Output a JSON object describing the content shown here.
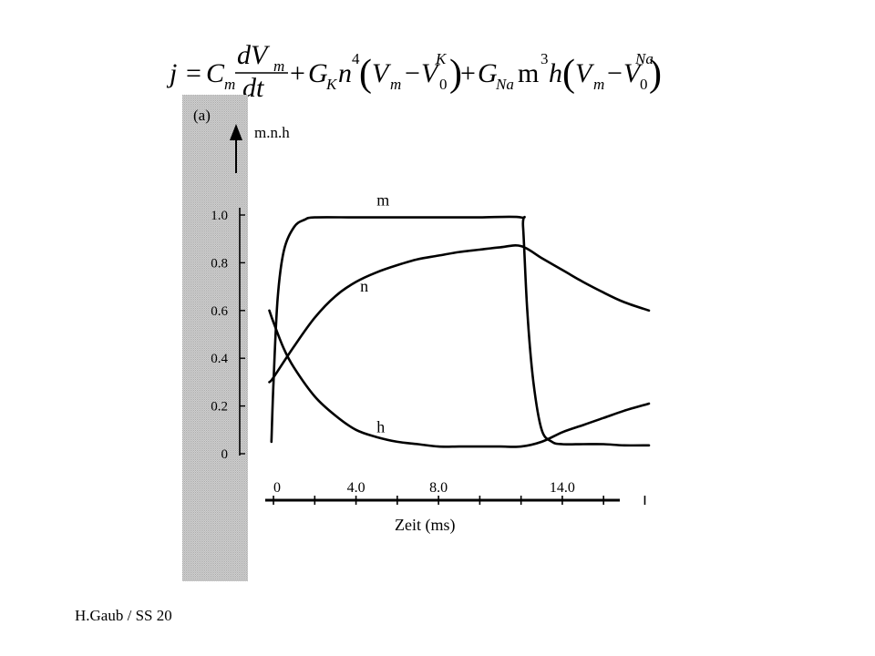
{
  "equation": {
    "lhs": "j",
    "eq": "=",
    "cm": "C",
    "cm_sub": "m",
    "dv": "dV",
    "dv_sub": "m",
    "dt": "dt",
    "plus1": "+",
    "gk": "G",
    "gk_sub": "K",
    "n": "n",
    "n_exp": "4",
    "open1": "(",
    "vm1": "V",
    "vm1_sub": "m",
    "minus1": "−",
    "v0k": "V",
    "v0k_sub": "0",
    "v0k_sup": "K",
    "close1": ")",
    "plus2": "+",
    "gna": "G",
    "gna_sub": "Na",
    "m": "m",
    "m_exp": "3",
    "h": "h",
    "open2": "(",
    "vm2": "V",
    "vm2_sub": "m",
    "minus2": "−",
    "v0na": "V",
    "v0na_sub": "0",
    "v0na_sup": "Na",
    "close2": ")"
  },
  "chart_data": {
    "type": "line",
    "panel_label": "(a)",
    "ylabel": "m.n.h",
    "xlabel": "Zeit (ms)",
    "xlim": [
      -0.4,
      18.2
    ],
    "ylim": [
      0,
      1.0
    ],
    "y_tick_labels": [
      {
        "value": 0,
        "label": "0"
      },
      {
        "value": 0.2,
        "label": "0.2"
      },
      {
        "value": 0.4,
        "label": "0.4"
      },
      {
        "value": 0.6,
        "label": "0.6"
      },
      {
        "value": 0.8,
        "label": "0.8"
      },
      {
        "value": 1.0,
        "label": "1.0"
      }
    ],
    "x_tick_labels": [
      {
        "value": 0,
        "label": "0"
      },
      {
        "value": 4,
        "label": "4.0"
      },
      {
        "value": 8,
        "label": "8.0"
      },
      {
        "value": 14,
        "label": "14.0"
      }
    ],
    "x_ticks": [
      0,
      2,
      4,
      6,
      8,
      10,
      12,
      14,
      16,
      18
    ],
    "series": [
      {
        "name": "m",
        "x": [
          -0.1,
          0,
          0.2,
          0.5,
          1.0,
          1.5,
          2.0,
          4,
          6,
          8,
          10,
          12,
          12.1,
          12.3,
          12.6,
          13.0,
          13.5,
          14.0,
          15,
          16,
          17,
          18.2
        ],
        "y": [
          0.05,
          0.3,
          0.65,
          0.85,
          0.95,
          0.98,
          0.99,
          0.99,
          0.99,
          0.99,
          0.99,
          0.99,
          0.95,
          0.6,
          0.3,
          0.1,
          0.05,
          0.04,
          0.04,
          0.04,
          0.035,
          0.035
        ]
      },
      {
        "name": "n",
        "x": [
          -0.2,
          0,
          1,
          2,
          3,
          4,
          5,
          6,
          7,
          8,
          9,
          10,
          11,
          12,
          13,
          14,
          15,
          16,
          17,
          18.2
        ],
        "y": [
          0.3,
          0.32,
          0.45,
          0.57,
          0.66,
          0.72,
          0.76,
          0.79,
          0.815,
          0.83,
          0.845,
          0.855,
          0.865,
          0.87,
          0.82,
          0.77,
          0.72,
          0.675,
          0.635,
          0.6
        ]
      },
      {
        "name": "h",
        "x": [
          -0.2,
          0,
          0.5,
          1,
          2,
          3,
          4,
          5,
          6,
          7,
          8,
          9,
          10,
          11,
          12,
          13,
          14,
          15,
          16,
          17,
          18.2
        ],
        "y": [
          0.6,
          0.55,
          0.44,
          0.36,
          0.24,
          0.16,
          0.1,
          0.07,
          0.05,
          0.04,
          0.03,
          0.03,
          0.03,
          0.03,
          0.03,
          0.05,
          0.09,
          0.12,
          0.15,
          0.18,
          0.21
        ]
      }
    ]
  },
  "footer": {
    "text": "H.Gaub / SS 20"
  },
  "colors": {
    "sidebar_fill": "#c4c4c4",
    "curve": "#000000",
    "background": "#ffffff"
  }
}
